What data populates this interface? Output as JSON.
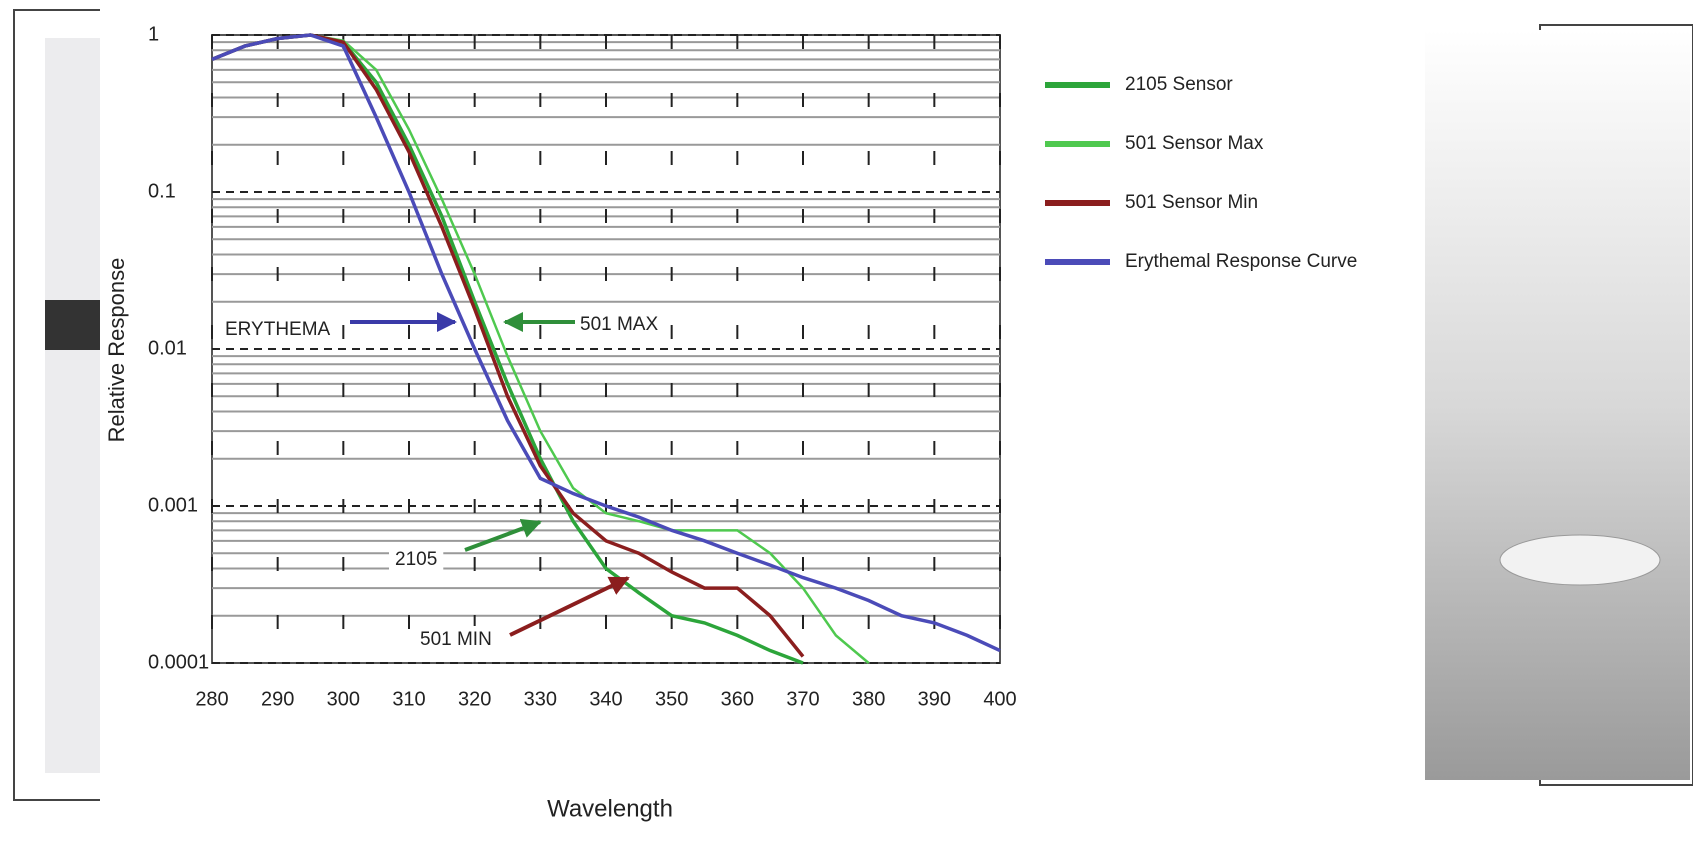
{
  "chart_data": {
    "type": "line",
    "x_label": "Wavelength",
    "y_label": "Relative Response",
    "x": [
      280,
      285,
      290,
      295,
      300,
      305,
      310,
      315,
      320,
      325,
      330,
      335,
      340,
      345,
      350,
      355,
      360,
      365,
      370,
      375,
      380,
      385,
      390,
      395,
      400
    ],
    "series": [
      {
        "name": "2105 Sensor",
        "color": "#2ca53a",
        "values": [
          0.7,
          0.85,
          0.95,
          1,
          0.9,
          0.5,
          0.2,
          0.07,
          0.02,
          0.006,
          0.002,
          0.0008,
          0.0004,
          0.00028,
          0.0002,
          0.00018,
          0.00015,
          0.00012,
          0.0001,
          null,
          null,
          null,
          null,
          null,
          null
        ]
      },
      {
        "name": "501 Sensor Max",
        "color": "#4fc94f",
        "values": [
          0.7,
          0.85,
          0.95,
          1,
          0.92,
          0.6,
          0.25,
          0.09,
          0.03,
          0.009,
          0.003,
          0.0013,
          0.0009,
          0.0008,
          0.0007,
          0.0007,
          0.0007,
          0.0005,
          0.0003,
          0.00015,
          0.0001,
          null,
          null,
          null,
          null
        ]
      },
      {
        "name": "501 Sensor Min",
        "color": "#8b1e1e",
        "values": [
          0.7,
          0.85,
          0.95,
          1,
          0.9,
          0.45,
          0.18,
          0.06,
          0.018,
          0.005,
          0.0018,
          0.0009,
          0.0006,
          0.0005,
          0.00038,
          0.0003,
          0.0003,
          0.0002,
          0.00011,
          null,
          null,
          null,
          null,
          null,
          null
        ]
      },
      {
        "name": "Erythemal Response Curve",
        "color": "#4b4bb8",
        "values": [
          0.7,
          0.85,
          0.95,
          1,
          0.85,
          0.3,
          0.1,
          0.03,
          0.01,
          0.0035,
          0.0015,
          0.0012,
          0.001,
          0.00085,
          0.0007,
          0.0006,
          0.0005,
          0.00042,
          0.00035,
          0.0003,
          0.00025,
          0.0002,
          0.00018,
          0.00015,
          0.00012
        ]
      }
    ],
    "xlim": [
      280,
      400
    ],
    "xticks": [
      280,
      290,
      300,
      310,
      320,
      330,
      340,
      350,
      360,
      370,
      380,
      390,
      400
    ],
    "ylim": [
      0.0001,
      1
    ],
    "yticks": [
      0.0001,
      0.001,
      0.01,
      0.1,
      1
    ],
    "log_y": true,
    "grid": true,
    "legend": "right",
    "annotations": [
      "ERYTHEMA",
      "501 MAX",
      "2105",
      "501 MIN"
    ]
  }
}
